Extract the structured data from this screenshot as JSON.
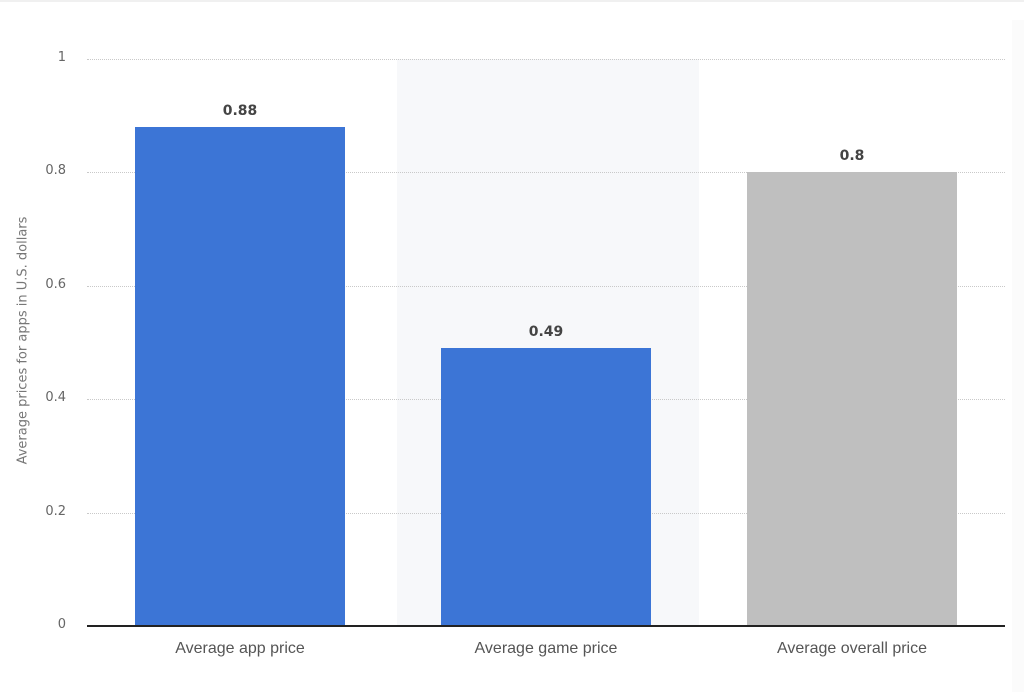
{
  "chart_data": {
    "type": "bar",
    "title": "",
    "xlabel": "",
    "ylabel": "Average prices for apps in U.S. dollars",
    "categories": [
      "Average app price",
      "Average game price",
      "Average overall price"
    ],
    "values": [
      0.88,
      0.49,
      0.8
    ],
    "value_labels": [
      "0.88",
      "0.49",
      "0.8"
    ],
    "bar_colors": [
      "#3c75d6",
      "#3c75d6",
      "#bfbfbf"
    ],
    "ylim": [
      0,
      1
    ],
    "yticks": [
      0,
      0.2,
      0.4,
      0.6,
      0.8,
      1
    ],
    "ytick_labels": [
      "0",
      "0.2",
      "0.4",
      "0.6",
      "0.8",
      "1"
    ],
    "grid": true,
    "grid_style": "dotted",
    "legend": null,
    "highlighted_category_index": 1
  },
  "colors": {
    "primary_bar": "#3c75d6",
    "total_bar": "#bfbfbf",
    "hover_band": "#f7f8fa",
    "axis": "#222222",
    "grid": "#c9c9c9"
  }
}
